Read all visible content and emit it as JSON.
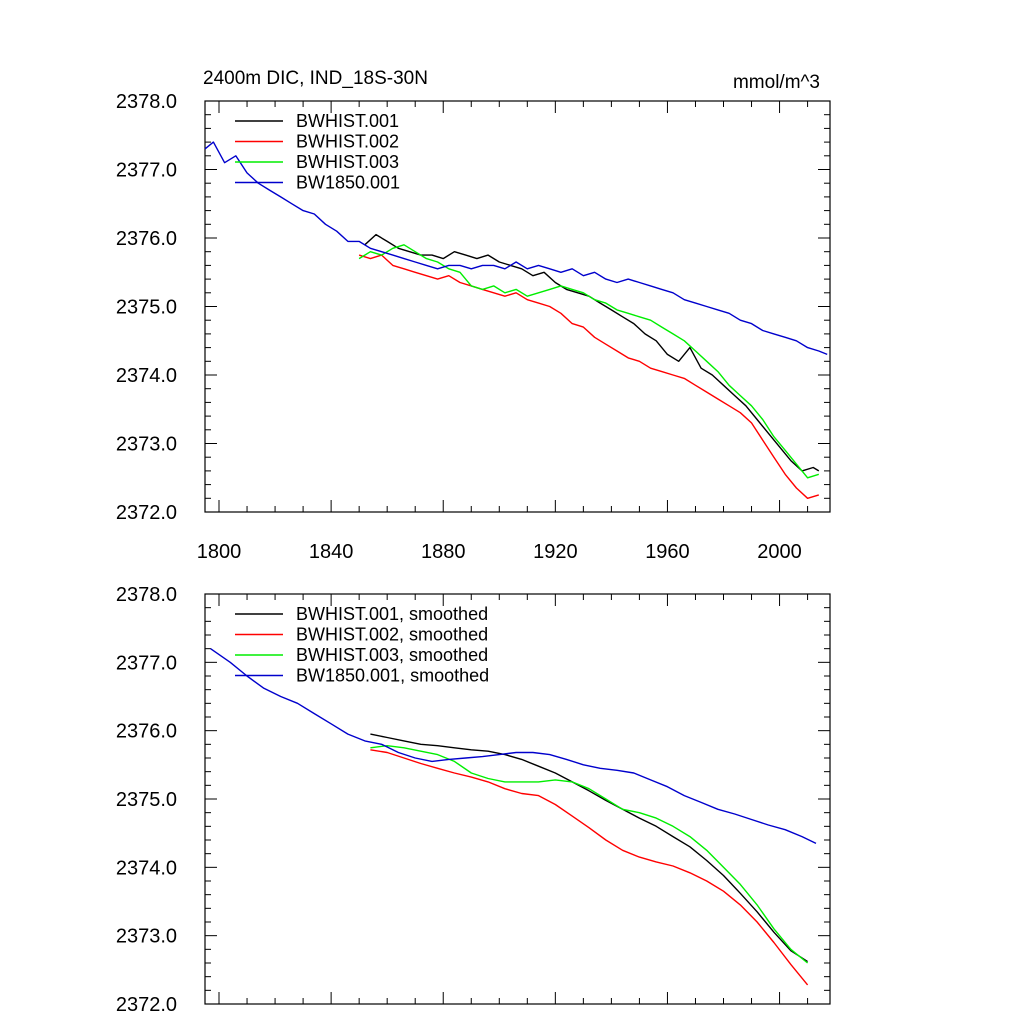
{
  "chart_data": [
    {
      "type": "line",
      "title": "2400m DIC, IND_18S-30N",
      "units": "mmol/m^3",
      "xlim": [
        1795,
        2018
      ],
      "ylim": [
        2372.0,
        2378.0
      ],
      "x_ticks": [
        1800,
        1840,
        1880,
        1920,
        1960,
        2000
      ],
      "x_tick_labels": [
        "1800",
        "1840",
        "1880",
        "1920",
        "1960",
        "2000"
      ],
      "y_ticks": [
        2372.0,
        2373.0,
        2374.0,
        2375.0,
        2376.0,
        2377.0,
        2378.0
      ],
      "y_tick_labels": [
        "2372.0",
        "2373.0",
        "2374.0",
        "2375.0",
        "2376.0",
        "2377.0",
        "2378.0"
      ],
      "grid": false,
      "legend_position": "top-left",
      "series": [
        {
          "name": "BWHIST.001",
          "color": "#000000",
          "x": [
            1852,
            1856,
            1860,
            1864,
            1868,
            1872,
            1876,
            1880,
            1884,
            1888,
            1892,
            1896,
            1900,
            1904,
            1908,
            1912,
            1916,
            1920,
            1924,
            1928,
            1932,
            1936,
            1940,
            1944,
            1948,
            1952,
            1956,
            1960,
            1964,
            1968,
            1972,
            1976,
            1980,
            1984,
            1988,
            1992,
            1996,
            2000,
            2004,
            2008,
            2012,
            2014
          ],
          "y": [
            2375.9,
            2376.05,
            2375.95,
            2375.85,
            2375.8,
            2375.75,
            2375.75,
            2375.7,
            2375.8,
            2375.75,
            2375.7,
            2375.75,
            2375.65,
            2375.6,
            2375.55,
            2375.45,
            2375.5,
            2375.35,
            2375.25,
            2375.2,
            2375.15,
            2375.05,
            2374.95,
            2374.85,
            2374.75,
            2374.6,
            2374.5,
            2374.3,
            2374.2,
            2374.4,
            2374.1,
            2374.0,
            2373.85,
            2373.7,
            2373.55,
            2373.35,
            2373.15,
            2372.95,
            2372.75,
            2372.6,
            2372.65,
            2372.6
          ]
        },
        {
          "name": "BWHIST.002",
          "color": "#ff0000",
          "x": [
            1850,
            1854,
            1858,
            1862,
            1866,
            1870,
            1874,
            1878,
            1882,
            1886,
            1890,
            1894,
            1898,
            1902,
            1906,
            1910,
            1914,
            1918,
            1922,
            1926,
            1930,
            1934,
            1938,
            1942,
            1946,
            1950,
            1954,
            1958,
            1962,
            1966,
            1970,
            1974,
            1978,
            1982,
            1986,
            1990,
            1994,
            1998,
            2002,
            2006,
            2010,
            2014
          ],
          "y": [
            2375.75,
            2375.7,
            2375.75,
            2375.6,
            2375.55,
            2375.5,
            2375.45,
            2375.4,
            2375.45,
            2375.35,
            2375.3,
            2375.25,
            2375.2,
            2375.15,
            2375.2,
            2375.1,
            2375.05,
            2375.0,
            2374.9,
            2374.75,
            2374.7,
            2374.55,
            2374.45,
            2374.35,
            2374.25,
            2374.2,
            2374.1,
            2374.05,
            2374.0,
            2373.95,
            2373.85,
            2373.75,
            2373.65,
            2373.55,
            2373.45,
            2373.3,
            2373.05,
            2372.8,
            2372.55,
            2372.35,
            2372.2,
            2372.25
          ]
        },
        {
          "name": "BWHIST.003",
          "color": "#00ee00",
          "x": [
            1850,
            1854,
            1858,
            1862,
            1866,
            1870,
            1874,
            1878,
            1882,
            1886,
            1890,
            1894,
            1898,
            1902,
            1906,
            1910,
            1914,
            1918,
            1922,
            1926,
            1930,
            1934,
            1938,
            1942,
            1946,
            1950,
            1954,
            1958,
            1962,
            1966,
            1970,
            1974,
            1978,
            1982,
            1986,
            1990,
            1994,
            1998,
            2002,
            2006,
            2010,
            2014
          ],
          "y": [
            2375.7,
            2375.8,
            2375.75,
            2375.85,
            2375.9,
            2375.8,
            2375.7,
            2375.65,
            2375.55,
            2375.5,
            2375.3,
            2375.25,
            2375.3,
            2375.2,
            2375.25,
            2375.15,
            2375.2,
            2375.25,
            2375.3,
            2375.25,
            2375.2,
            2375.1,
            2375.05,
            2374.95,
            2374.9,
            2374.85,
            2374.8,
            2374.7,
            2374.6,
            2374.5,
            2374.35,
            2374.2,
            2374.05,
            2373.85,
            2373.7,
            2373.55,
            2373.35,
            2373.1,
            2372.9,
            2372.7,
            2372.5,
            2372.55
          ]
        },
        {
          "name": "BW1850.001",
          "color": "#0000cc",
          "x": [
            1795,
            1798,
            1802,
            1806,
            1810,
            1814,
            1818,
            1822,
            1826,
            1830,
            1834,
            1838,
            1842,
            1846,
            1850,
            1854,
            1858,
            1862,
            1866,
            1870,
            1874,
            1878,
            1882,
            1886,
            1890,
            1894,
            1898,
            1902,
            1906,
            1910,
            1914,
            1918,
            1922,
            1926,
            1930,
            1934,
            1938,
            1942,
            1946,
            1950,
            1954,
            1958,
            1962,
            1966,
            1970,
            1974,
            1978,
            1982,
            1986,
            1990,
            1994,
            1998,
            2002,
            2006,
            2010,
            2014,
            2017
          ],
          "y": [
            2377.3,
            2377.4,
            2377.1,
            2377.2,
            2376.95,
            2376.8,
            2376.7,
            2376.6,
            2376.5,
            2376.4,
            2376.35,
            2376.2,
            2376.1,
            2375.95,
            2375.95,
            2375.85,
            2375.8,
            2375.75,
            2375.7,
            2375.65,
            2375.6,
            2375.55,
            2375.6,
            2375.6,
            2375.55,
            2375.6,
            2375.6,
            2375.55,
            2375.65,
            2375.55,
            2375.6,
            2375.55,
            2375.5,
            2375.55,
            2375.45,
            2375.5,
            2375.4,
            2375.35,
            2375.4,
            2375.35,
            2375.3,
            2375.25,
            2375.2,
            2375.1,
            2375.05,
            2375.0,
            2374.95,
            2374.9,
            2374.8,
            2374.75,
            2374.65,
            2374.6,
            2374.55,
            2374.5,
            2374.4,
            2374.35,
            2374.3
          ]
        }
      ]
    },
    {
      "type": "line",
      "title": "",
      "units": "",
      "xlim": [
        1795,
        2018
      ],
      "ylim": [
        2372.0,
        2378.0
      ],
      "x_ticks": [
        1800,
        1840,
        1880,
        1920,
        1960,
        2000
      ],
      "x_tick_labels": [],
      "y_ticks": [
        2372.0,
        2373.0,
        2374.0,
        2375.0,
        2376.0,
        2377.0,
        2378.0
      ],
      "y_tick_labels": [
        "2372.0",
        "2373.0",
        "2374.0",
        "2375.0",
        "2376.0",
        "2377.0",
        "2378.0"
      ],
      "grid": false,
      "legend_position": "top-left",
      "series": [
        {
          "name": "BWHIST.001, smoothed",
          "color": "#000000",
          "x": [
            1854,
            1860,
            1866,
            1872,
            1878,
            1884,
            1890,
            1896,
            1902,
            1908,
            1914,
            1920,
            1926,
            1932,
            1938,
            1944,
            1950,
            1956,
            1962,
            1968,
            1974,
            1980,
            1986,
            1992,
            1998,
            2004,
            2010
          ],
          "y": [
            2375.95,
            2375.9,
            2375.85,
            2375.8,
            2375.78,
            2375.75,
            2375.72,
            2375.7,
            2375.65,
            2375.58,
            2375.48,
            2375.38,
            2375.25,
            2375.12,
            2374.98,
            2374.85,
            2374.72,
            2374.6,
            2374.45,
            2374.3,
            2374.1,
            2373.88,
            2373.62,
            2373.35,
            2373.05,
            2372.78,
            2372.62
          ]
        },
        {
          "name": "BWHIST.002, smoothed",
          "color": "#ff0000",
          "x": [
            1854,
            1860,
            1866,
            1872,
            1878,
            1884,
            1890,
            1896,
            1902,
            1908,
            1914,
            1920,
            1926,
            1932,
            1938,
            1944,
            1950,
            1956,
            1962,
            1968,
            1974,
            1980,
            1986,
            1992,
            1998,
            2004,
            2010
          ],
          "y": [
            2375.72,
            2375.68,
            2375.6,
            2375.52,
            2375.45,
            2375.38,
            2375.32,
            2375.25,
            2375.15,
            2375.08,
            2375.05,
            2374.92,
            2374.75,
            2374.58,
            2374.4,
            2374.25,
            2374.15,
            2374.08,
            2374.02,
            2373.92,
            2373.8,
            2373.65,
            2373.45,
            2373.2,
            2372.9,
            2372.58,
            2372.28
          ]
        },
        {
          "name": "BWHIST.003, smoothed",
          "color": "#00ee00",
          "x": [
            1854,
            1860,
            1866,
            1872,
            1878,
            1884,
            1890,
            1896,
            1902,
            1908,
            1914,
            1920,
            1926,
            1932,
            1938,
            1944,
            1950,
            1956,
            1962,
            1968,
            1974,
            1980,
            1986,
            1992,
            1998,
            2004,
            2010
          ],
          "y": [
            2375.75,
            2375.78,
            2375.75,
            2375.7,
            2375.65,
            2375.55,
            2375.38,
            2375.3,
            2375.25,
            2375.25,
            2375.25,
            2375.28,
            2375.25,
            2375.15,
            2375.0,
            2374.85,
            2374.8,
            2374.72,
            2374.6,
            2374.45,
            2374.25,
            2374.0,
            2373.75,
            2373.45,
            2373.1,
            2372.8,
            2372.6
          ]
        },
        {
          "name": "BW1850.001, smoothed",
          "color": "#0000cc",
          "x": [
            1797,
            1804,
            1810,
            1816,
            1822,
            1828,
            1834,
            1840,
            1846,
            1852,
            1858,
            1864,
            1870,
            1876,
            1882,
            1888,
            1894,
            1900,
            1906,
            1912,
            1918,
            1924,
            1930,
            1936,
            1942,
            1948,
            1954,
            1960,
            1966,
            1972,
            1978,
            1984,
            1990,
            1996,
            2002,
            2008,
            2013
          ],
          "y": [
            2377.2,
            2377.0,
            2376.8,
            2376.62,
            2376.5,
            2376.4,
            2376.25,
            2376.1,
            2375.95,
            2375.85,
            2375.8,
            2375.68,
            2375.6,
            2375.55,
            2375.58,
            2375.6,
            2375.62,
            2375.65,
            2375.68,
            2375.68,
            2375.65,
            2375.58,
            2375.5,
            2375.45,
            2375.42,
            2375.38,
            2375.28,
            2375.18,
            2375.05,
            2374.95,
            2374.85,
            2374.78,
            2374.7,
            2374.62,
            2374.55,
            2374.45,
            2374.35
          ]
        }
      ]
    }
  ]
}
